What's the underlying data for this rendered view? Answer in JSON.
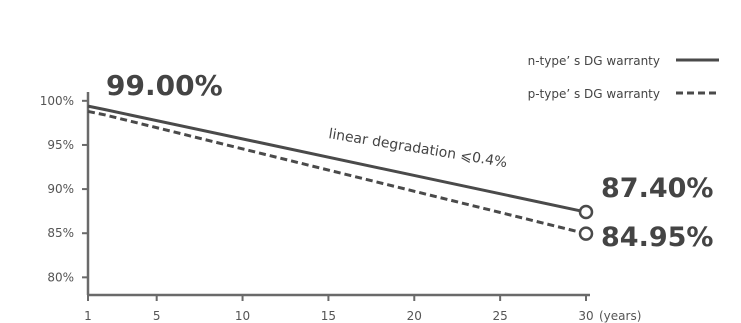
{
  "chart_data": {
    "type": "line",
    "x_ticks": [
      1,
      5,
      10,
      15,
      20,
      25,
      30
    ],
    "x_unit": "(years)",
    "y_ticks": [
      "100%",
      "95%",
      "90%",
      "85%",
      "80%"
    ],
    "y_tick_values": [
      100,
      95,
      90,
      85,
      80
    ],
    "xlim": [
      1,
      30
    ],
    "ylim": [
      78,
      101
    ],
    "grid": false,
    "legend_position": "top-right",
    "series": [
      {
        "name": "n-type’ s DG warranty",
        "style": "solid",
        "color": "#4a4a4a",
        "x": [
          1,
          2,
          30
        ],
        "y": [
          99.4,
          99.0,
          87.4
        ]
      },
      {
        "name": "p-type’ s DG warranty",
        "style": "dashed",
        "color": "#4a4a4a",
        "x": [
          1,
          2,
          30
        ],
        "y": [
          98.8,
          98.4,
          84.95
        ]
      }
    ],
    "annotations": {
      "start_value": "99.00%",
      "end_n_value": "87.40%",
      "end_p_value": "84.95%",
      "slope_label": "linear degradation ⩽0.4%"
    }
  }
}
